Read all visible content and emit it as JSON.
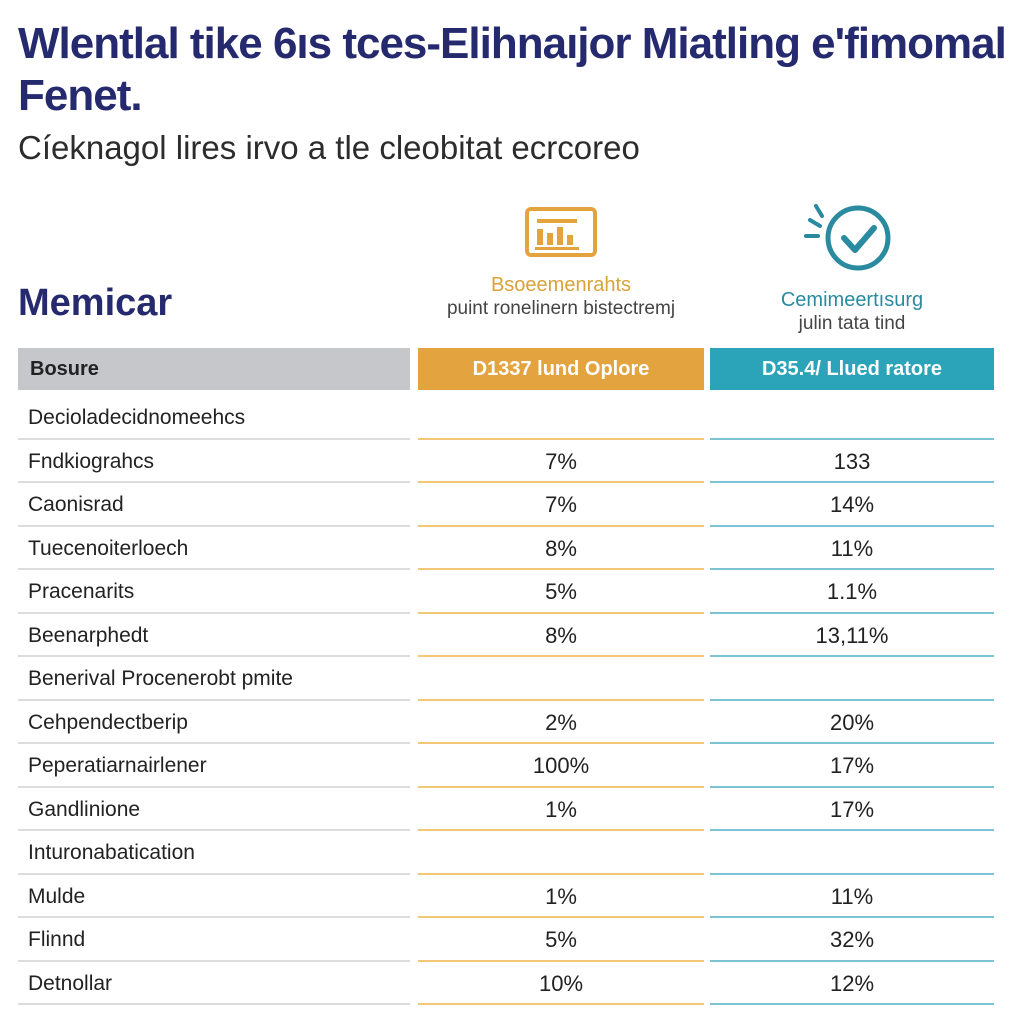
{
  "header": {
    "title": "Wlentlal tike 6ıs tces-Elihnaıjor Miatling e'fimomal Fenet.",
    "subtitle": "Cíeknagol lires irvo a tle cleobitat ecrcoreo"
  },
  "section_heading": "Memicar",
  "columns": {
    "a": {
      "icon": "document-chart-icon",
      "title": "Bsoeemenrahts",
      "subtitle": "puint ronelinern bistectremj",
      "header": "D1337 lund Oplore",
      "color": "#e3a33e"
    },
    "b": {
      "icon": "check-circle-icon",
      "title": "Cemimeertısurg",
      "subtitle": "julin tata tind",
      "header": "D35.4/ Llued ratore",
      "color": "#2ba3b8"
    },
    "label_header": "Bosure"
  },
  "chart_data": {
    "type": "table",
    "columns": [
      "Bosure",
      "D1337 lund Oplore",
      "D35.4/ Llued ratore"
    ],
    "rows": [
      {
        "label": "Decioladecidnomeehcs",
        "a": "",
        "b": ""
      },
      {
        "label": "Fndkiograhcs",
        "a": "7%",
        "b": "133"
      },
      {
        "label": "Caonisrad",
        "a": "7%",
        "b": "14%"
      },
      {
        "label": "Tuecenoiterloech",
        "a": "8%",
        "b": "11%"
      },
      {
        "label": "Pracenarits",
        "a": "5%",
        "b": "1.1%"
      },
      {
        "label": "Beenarphedt",
        "a": "8%",
        "b": "13,11%"
      },
      {
        "label": "Benerival Procenerobt pmite",
        "a": "",
        "b": ""
      },
      {
        "label": "Cehpendectberip",
        "a": "2%",
        "b": "20%"
      },
      {
        "label": "Peperatiarnairlener",
        "a": "100%",
        "b": "17%"
      },
      {
        "label": "Gandlinione",
        "a": "1%",
        "b": "17%"
      },
      {
        "label": "Inturonabatication",
        "a": "",
        "b": ""
      },
      {
        "label": "Mulde",
        "a": "1%",
        "b": "11%"
      },
      {
        "label": "Flinnd",
        "a": "5%",
        "b": "32%"
      },
      {
        "label": "Detnollar",
        "a": "10%",
        "b": "12%"
      }
    ]
  }
}
